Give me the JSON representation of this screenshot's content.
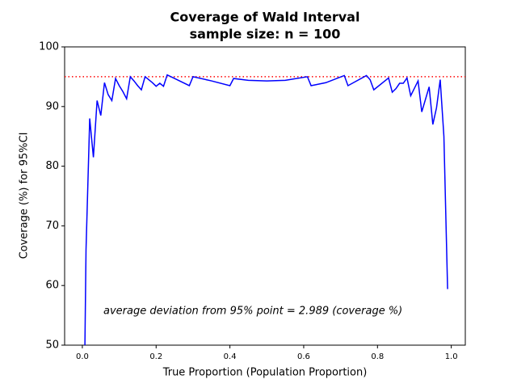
{
  "chart_data": {
    "type": "line",
    "title": "Coverage of Wald Interval",
    "subtitle": "sample size: n = 100",
    "x_label": "True Proportion (Population Proportion)",
    "y_label": "Coverage (%) for 95%CI",
    "annotation": "average deviation from 95% point =  2.989 (coverage %)",
    "x": [
      0.007,
      0.01,
      0.02,
      0.03,
      0.04,
      0.05,
      0.06,
      0.07,
      0.08,
      0.09,
      0.1,
      0.11,
      0.12,
      0.13,
      0.14,
      0.15,
      0.16,
      0.17,
      0.18,
      0.19,
      0.2,
      0.21,
      0.22,
      0.23,
      0.25,
      0.29,
      0.3,
      0.35,
      0.4,
      0.41,
      0.45,
      0.5,
      0.55,
      0.61,
      0.62,
      0.66,
      0.71,
      0.72,
      0.77,
      0.78,
      0.79,
      0.83,
      0.84,
      0.85,
      0.86,
      0.87,
      0.88,
      0.89,
      0.91,
      0.92,
      0.94,
      0.95,
      0.96,
      0.97,
      0.98,
      0.99
    ],
    "values": [
      50,
      66,
      88,
      81.5,
      91,
      88.5,
      94,
      92,
      91,
      94.7,
      93.5,
      92.5,
      91.3,
      95,
      94.3,
      93.5,
      92.8,
      95,
      94.5,
      94,
      93.4,
      93.9,
      93.4,
      95.3,
      94.7,
      93.5,
      95,
      94.3,
      93.5,
      94.7,
      94.4,
      94.3,
      94.4,
      95,
      93.5,
      94,
      95.2,
      93.5,
      95.2,
      94.5,
      92.8,
      94.8,
      92.4,
      93,
      93.9,
      93.9,
      94.8,
      91.8,
      94.3,
      89.1,
      93.3,
      87,
      89.8,
      94.5,
      85,
      59.4
    ],
    "color": "#0000ff",
    "reference_line": 95,
    "reference_color": "#ff0000",
    "xlim": [
      -0.048,
      1.038
    ],
    "ylim": [
      50,
      100
    ],
    "xticks": [
      {
        "value": 0,
        "label": "0.0"
      },
      0.2,
      0.4,
      0.6,
      0.8,
      {
        "value": 1,
        "label": "1.0"
      }
    ],
    "yticks": [
      50,
      60,
      70,
      80,
      90,
      100
    ]
  }
}
